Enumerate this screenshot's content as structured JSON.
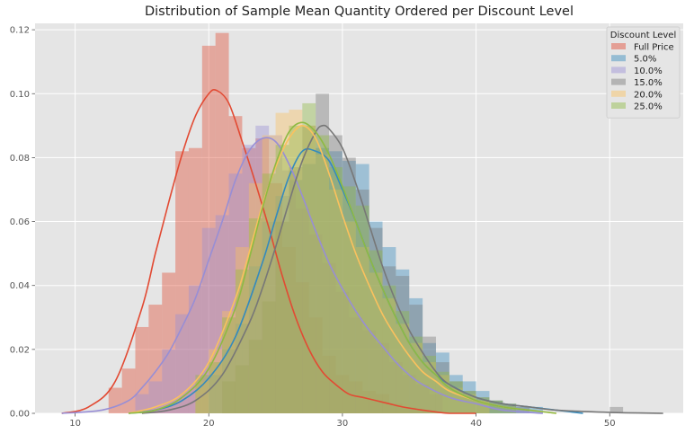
{
  "chart_data": {
    "type": "histogram",
    "title": "Distribution of Sample Mean Quantity Ordered per Discount Level",
    "xlabel": "",
    "ylabel": "",
    "xlim": [
      7,
      55.5
    ],
    "ylim": [
      0,
      0.122
    ],
    "xticks": [
      10,
      20,
      30,
      40,
      50
    ],
    "yticks": [
      0.0,
      0.02,
      0.04,
      0.06,
      0.08,
      0.1,
      0.12
    ],
    "grid": true,
    "legend": {
      "title": "Discount Level",
      "placement": "top-right"
    },
    "series": [
      {
        "name": "Full Price",
        "color": "#E24A33",
        "kde": {
          "x": [
            9,
            11,
            13,
            15,
            16,
            17,
            18,
            19,
            20,
            20.6,
            21.5,
            22.5,
            23.5,
            24.5,
            25.5,
            26.5,
            27.5,
            28.5,
            29.5,
            30.5,
            31.5,
            32.5,
            33.5,
            34.5,
            36,
            38,
            40
          ],
          "y": [
            0,
            0.002,
            0.01,
            0.033,
            0.05,
            0.066,
            0.081,
            0.093,
            0.1,
            0.101,
            0.097,
            0.085,
            0.072,
            0.058,
            0.043,
            0.03,
            0.02,
            0.013,
            0.009,
            0.006,
            0.005,
            0.004,
            0.003,
            0.002,
            0.001,
            0,
            0
          ]
        },
        "hist": [
          [
            12.5,
            13.5,
            0.008
          ],
          [
            13.5,
            14.5,
            0.014
          ],
          [
            14.5,
            15.5,
            0.027
          ],
          [
            15.5,
            16.5,
            0.034
          ],
          [
            16.5,
            17.5,
            0.044
          ],
          [
            17.5,
            18.5,
            0.082
          ],
          [
            18.5,
            19.5,
            0.083
          ],
          [
            19.5,
            20.5,
            0.115
          ],
          [
            20.5,
            21.5,
            0.119
          ],
          [
            21.5,
            22.5,
            0.093
          ],
          [
            22.5,
            23.5,
            0.083
          ],
          [
            23.5,
            24.5,
            0.086
          ],
          [
            24.5,
            25.5,
            0.072
          ],
          [
            25.5,
            26.5,
            0.052
          ],
          [
            26.5,
            27.5,
            0.041
          ],
          [
            27.5,
            28.5,
            0.03
          ],
          [
            28.5,
            29.5,
            0.018
          ],
          [
            29.5,
            30.5,
            0.012
          ],
          [
            30.5,
            31.5,
            0.01
          ],
          [
            31.5,
            32.5,
            0.007
          ],
          [
            32.5,
            33.5,
            0.006
          ],
          [
            33.5,
            34.5,
            0.003
          ],
          [
            34.5,
            35.5,
            0.002
          ],
          [
            35.5,
            36.5,
            0.001
          ]
        ]
      },
      {
        "name": "5.0%",
        "color": "#348ABD",
        "kde": {
          "x": [
            14,
            16,
            18,
            20,
            22,
            24,
            25,
            26,
            27,
            28,
            29,
            30,
            31,
            32,
            33,
            34,
            35,
            36,
            37,
            38,
            40,
            42,
            44,
            46,
            48
          ],
          "y": [
            0,
            0.001,
            0.004,
            0.011,
            0.024,
            0.047,
            0.061,
            0.074,
            0.082,
            0.082,
            0.079,
            0.07,
            0.06,
            0.049,
            0.039,
            0.03,
            0.022,
            0.016,
            0.012,
            0.009,
            0.005,
            0.003,
            0.002,
            0.001,
            0
          ]
        },
        "hist": [
          [
            20,
            21,
            0.012
          ],
          [
            21,
            22,
            0.02
          ],
          [
            22,
            23,
            0.028
          ],
          [
            23,
            24,
            0.046
          ],
          [
            24,
            25,
            0.06
          ],
          [
            25,
            26,
            0.068
          ],
          [
            26,
            27,
            0.073
          ],
          [
            27,
            28,
            0.078
          ],
          [
            28,
            29,
            0.083
          ],
          [
            29,
            30,
            0.082
          ],
          [
            30,
            31,
            0.079
          ],
          [
            31,
            32,
            0.078
          ],
          [
            32,
            33,
            0.06
          ],
          [
            33,
            34,
            0.052
          ],
          [
            34,
            35,
            0.045
          ],
          [
            35,
            36,
            0.036
          ],
          [
            36,
            37,
            0.022
          ],
          [
            37,
            38,
            0.019
          ],
          [
            38,
            39,
            0.012
          ],
          [
            39,
            40,
            0.01
          ],
          [
            40,
            41,
            0.007
          ],
          [
            41,
            42,
            0.004
          ],
          [
            42,
            43,
            0.003
          ],
          [
            43,
            44,
            0.002
          ],
          [
            44,
            45,
            0.002
          ]
        ]
      },
      {
        "name": "10.0%",
        "color": "#988ED5",
        "kde": {
          "x": [
            9,
            12,
            14,
            15,
            16,
            17,
            18,
            19,
            20,
            21,
            22,
            23,
            24,
            25,
            26,
            27,
            28,
            29,
            30,
            31,
            32,
            33,
            34,
            35,
            36,
            38,
            40,
            42,
            45
          ],
          "y": [
            0,
            0.001,
            0.004,
            0.008,
            0.013,
            0.019,
            0.027,
            0.036,
            0.048,
            0.06,
            0.073,
            0.082,
            0.086,
            0.085,
            0.078,
            0.068,
            0.057,
            0.047,
            0.039,
            0.032,
            0.026,
            0.021,
            0.016,
            0.012,
            0.009,
            0.005,
            0.003,
            0.001,
            0
          ]
        },
        "hist": [
          [
            14.5,
            15.5,
            0.006
          ],
          [
            15.5,
            16.5,
            0.01
          ],
          [
            16.5,
            17.5,
            0.02
          ],
          [
            17.5,
            18.5,
            0.031
          ],
          [
            18.5,
            19.5,
            0.04
          ],
          [
            19.5,
            20.5,
            0.058
          ],
          [
            20.5,
            21.5,
            0.062
          ],
          [
            21.5,
            22.5,
            0.075
          ],
          [
            22.5,
            23.5,
            0.084
          ],
          [
            23.5,
            24.5,
            0.09
          ],
          [
            24.5,
            25.5,
            0.087
          ],
          [
            25.5,
            26.5,
            0.076
          ],
          [
            26.5,
            27.5,
            0.064
          ],
          [
            27.5,
            28.5,
            0.056
          ],
          [
            28.5,
            29.5,
            0.047
          ],
          [
            29.5,
            30.5,
            0.038
          ],
          [
            30.5,
            31.5,
            0.03
          ],
          [
            31.5,
            32.5,
            0.026
          ],
          [
            32.5,
            33.5,
            0.022
          ],
          [
            33.5,
            34.5,
            0.016
          ],
          [
            34.5,
            35.5,
            0.012
          ],
          [
            35.5,
            36.5,
            0.009
          ],
          [
            36.5,
            37.5,
            0.006
          ]
        ]
      },
      {
        "name": "15.0%",
        "color": "#777777",
        "kde": {
          "x": [
            15,
            17,
            19,
            21,
            23,
            24,
            25,
            26,
            27,
            28,
            28.5,
            29,
            30,
            31,
            32,
            33,
            34,
            35,
            36,
            37,
            38,
            40,
            42,
            44,
            46,
            50,
            54
          ],
          "y": [
            0,
            0.001,
            0.004,
            0.012,
            0.028,
            0.039,
            0.052,
            0.066,
            0.079,
            0.088,
            0.09,
            0.089,
            0.083,
            0.072,
            0.059,
            0.046,
            0.035,
            0.026,
            0.019,
            0.013,
            0.009,
            0.005,
            0.003,
            0.002,
            0.001,
            0.0003,
            0
          ]
        },
        "hist": [
          [
            21,
            22,
            0.01
          ],
          [
            22,
            23,
            0.015
          ],
          [
            23,
            24,
            0.023
          ],
          [
            24,
            25,
            0.035
          ],
          [
            25,
            26,
            0.06
          ],
          [
            26,
            27,
            0.077
          ],
          [
            27,
            28,
            0.09
          ],
          [
            28,
            29,
            0.1
          ],
          [
            29,
            30,
            0.087
          ],
          [
            30,
            31,
            0.08
          ],
          [
            31,
            32,
            0.07
          ],
          [
            32,
            33,
            0.058
          ],
          [
            33,
            34,
            0.046
          ],
          [
            34,
            35,
            0.043
          ],
          [
            35,
            36,
            0.034
          ],
          [
            36,
            37,
            0.024
          ],
          [
            37,
            38,
            0.016
          ],
          [
            38,
            39,
            0.01
          ],
          [
            39,
            40,
            0.007
          ],
          [
            40,
            41,
            0.005
          ],
          [
            41,
            42,
            0.004
          ],
          [
            42,
            43,
            0.003
          ],
          [
            43,
            44,
            0.002
          ],
          [
            50,
            51,
            0.002
          ]
        ]
      },
      {
        "name": "20.0%",
        "color": "#FBC15E",
        "kde": {
          "x": [
            14,
            16,
            18,
            20,
            22,
            23,
            24,
            25,
            26,
            27,
            28,
            29,
            30,
            31,
            32,
            33,
            34,
            35,
            36,
            37,
            38,
            40,
            42,
            44,
            46
          ],
          "y": [
            0,
            0.002,
            0.006,
            0.016,
            0.036,
            0.05,
            0.065,
            0.077,
            0.086,
            0.09,
            0.086,
            0.075,
            0.062,
            0.05,
            0.04,
            0.031,
            0.024,
            0.018,
            0.013,
            0.01,
            0.007,
            0.004,
            0.002,
            0.001,
            0
          ]
        },
        "hist": [
          [
            19,
            20,
            0.01
          ],
          [
            20,
            21,
            0.02
          ],
          [
            21,
            22,
            0.032
          ],
          [
            22,
            23,
            0.052
          ],
          [
            23,
            24,
            0.072
          ],
          [
            24,
            25,
            0.087
          ],
          [
            25,
            26,
            0.094
          ],
          [
            26,
            27,
            0.095
          ],
          [
            27,
            28,
            0.09
          ],
          [
            28,
            29,
            0.081
          ],
          [
            29,
            30,
            0.07
          ],
          [
            30,
            31,
            0.06
          ],
          [
            31,
            32,
            0.052
          ],
          [
            32,
            33,
            0.044
          ],
          [
            33,
            34,
            0.036
          ],
          [
            34,
            35,
            0.028
          ],
          [
            35,
            36,
            0.022
          ],
          [
            36,
            37,
            0.016
          ],
          [
            37,
            38,
            0.012
          ],
          [
            38,
            39,
            0.008
          ],
          [
            39,
            40,
            0.006
          ],
          [
            40,
            41,
            0.004
          ]
        ]
      },
      {
        "name": "25.0%",
        "color": "#8EBA42",
        "kde": {
          "x": [
            14,
            16,
            18,
            20,
            22,
            23,
            24,
            25,
            26,
            27,
            28,
            29,
            30,
            31,
            32,
            33,
            34,
            35,
            36,
            37,
            38,
            40,
            42,
            44,
            46
          ],
          "y": [
            0,
            0.001,
            0.005,
            0.014,
            0.033,
            0.048,
            0.064,
            0.078,
            0.088,
            0.091,
            0.088,
            0.081,
            0.071,
            0.06,
            0.049,
            0.039,
            0.03,
            0.022,
            0.016,
            0.012,
            0.008,
            0.004,
            0.002,
            0.001,
            0
          ]
        },
        "hist": [
          [
            19,
            20,
            0.012
          ],
          [
            20,
            21,
            0.016
          ],
          [
            21,
            22,
            0.03
          ],
          [
            22,
            23,
            0.045
          ],
          [
            23,
            24,
            0.061
          ],
          [
            24,
            25,
            0.075
          ],
          [
            25,
            26,
            0.084
          ],
          [
            26,
            27,
            0.09
          ],
          [
            27,
            28,
            0.097
          ],
          [
            28,
            29,
            0.087
          ],
          [
            29,
            30,
            0.077
          ],
          [
            30,
            31,
            0.071
          ],
          [
            31,
            32,
            0.065
          ],
          [
            32,
            33,
            0.051
          ],
          [
            33,
            34,
            0.04
          ],
          [
            34,
            35,
            0.032
          ],
          [
            35,
            36,
            0.024
          ],
          [
            36,
            37,
            0.018
          ],
          [
            37,
            38,
            0.013
          ],
          [
            38,
            39,
            0.01
          ],
          [
            39,
            40,
            0.007
          ],
          [
            40,
            41,
            0.005
          ],
          [
            41,
            42,
            0.004
          ],
          [
            42,
            43,
            0.003
          ]
        ]
      }
    ]
  }
}
